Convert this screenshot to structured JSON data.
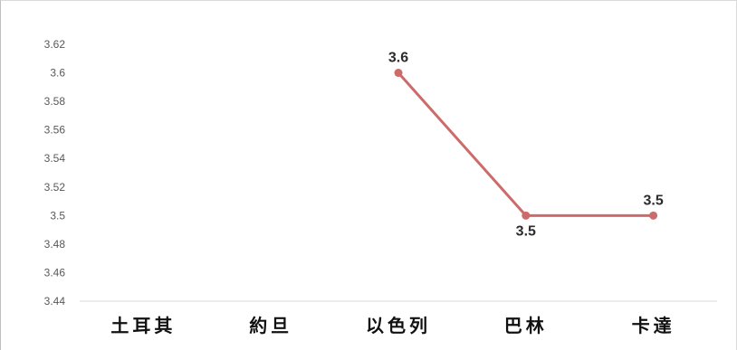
{
  "chart_data": {
    "type": "line",
    "categories": [
      "土耳其",
      "約旦",
      "以色列",
      "巴林",
      "卡達"
    ],
    "series": [
      {
        "values": [
          null,
          null,
          3.6,
          3.5,
          3.5
        ],
        "color": "#cd6b6b"
      }
    ],
    "data_labels": [
      "",
      "",
      "3.6",
      "3.5",
      "3.5"
    ],
    "ylim": [
      3.44,
      3.62
    ],
    "yticks": [
      3.44,
      3.46,
      3.48,
      3.5,
      3.52,
      3.54,
      3.56,
      3.58,
      3.6,
      3.62
    ],
    "ytick_labels": [
      "3.44",
      "3.46",
      "3.48",
      "3.5",
      "3.52",
      "3.54",
      "3.56",
      "3.58",
      "3.6",
      "3.62"
    ],
    "grid": false,
    "legend": "none",
    "title": "",
    "xlabel": "",
    "ylabel": ""
  }
}
